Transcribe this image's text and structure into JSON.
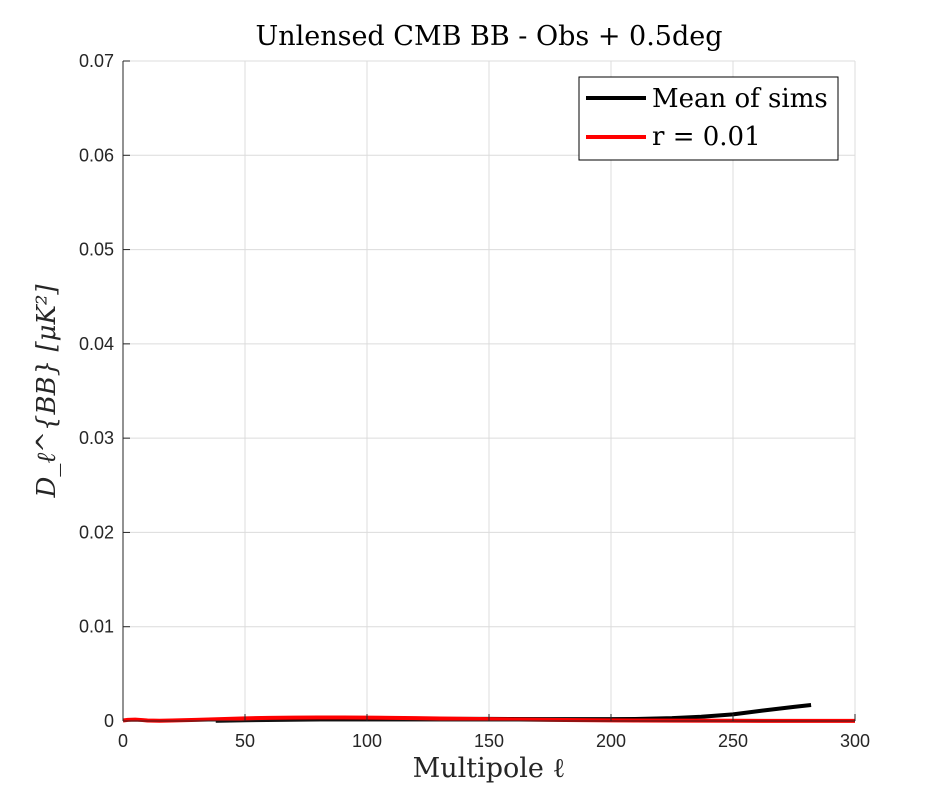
{
  "chart_data": {
    "type": "line",
    "title": "Unlensed CMB BB - Obs + 0.5deg",
    "xlabel": "Multipole ℓ",
    "ylabel": "D_ℓ^{BB} [μK²]",
    "xlim": [
      0,
      300
    ],
    "ylim": [
      0,
      0.07
    ],
    "xticks": [
      0,
      50,
      100,
      150,
      200,
      250,
      300
    ],
    "xtick_labels": [
      "0",
      "50",
      "100",
      "150",
      "200",
      "250",
      "300"
    ],
    "yticks": [
      0,
      0.01,
      0.02,
      0.03,
      0.04,
      0.05,
      0.06,
      0.07
    ],
    "ytick_labels": [
      "0",
      "0.01",
      "0.02",
      "0.03",
      "0.04",
      "0.05",
      "0.06",
      "0.07"
    ],
    "grid": true,
    "legend_position": "top-right",
    "series": [
      {
        "name": "Mean of sims",
        "color": "#000000",
        "x": [
          38,
          50,
          75,
          100,
          125,
          150,
          175,
          200,
          212,
          225,
          237,
          250,
          262,
          275,
          282
        ],
        "y": [
          3e-05,
          8e-05,
          0.00015,
          0.0002,
          0.00022,
          0.00022,
          0.0002,
          0.0002,
          0.00022,
          0.0003,
          0.00045,
          0.0007,
          0.0011,
          0.0015,
          0.0017
        ]
      },
      {
        "name": "r = 0.01",
        "color": "#ff0000",
        "x": [
          0,
          2,
          5,
          8,
          10,
          15,
          20,
          30,
          40,
          50,
          60,
          70,
          80,
          90,
          100,
          110,
          120,
          130,
          150,
          175,
          200,
          225,
          250,
          275,
          300
        ],
        "y": [
          5e-05,
          0.00012,
          0.00015,
          0.0001,
          5e-05,
          3e-05,
          5e-05,
          0.00012,
          0.0002,
          0.00028,
          0.00033,
          0.00036,
          0.00037,
          0.00037,
          0.00036,
          0.00033,
          0.0003,
          0.00026,
          0.0002,
          0.00012,
          7e-05,
          4e-05,
          2e-05,
          1e-05,
          1e-05
        ]
      }
    ]
  }
}
